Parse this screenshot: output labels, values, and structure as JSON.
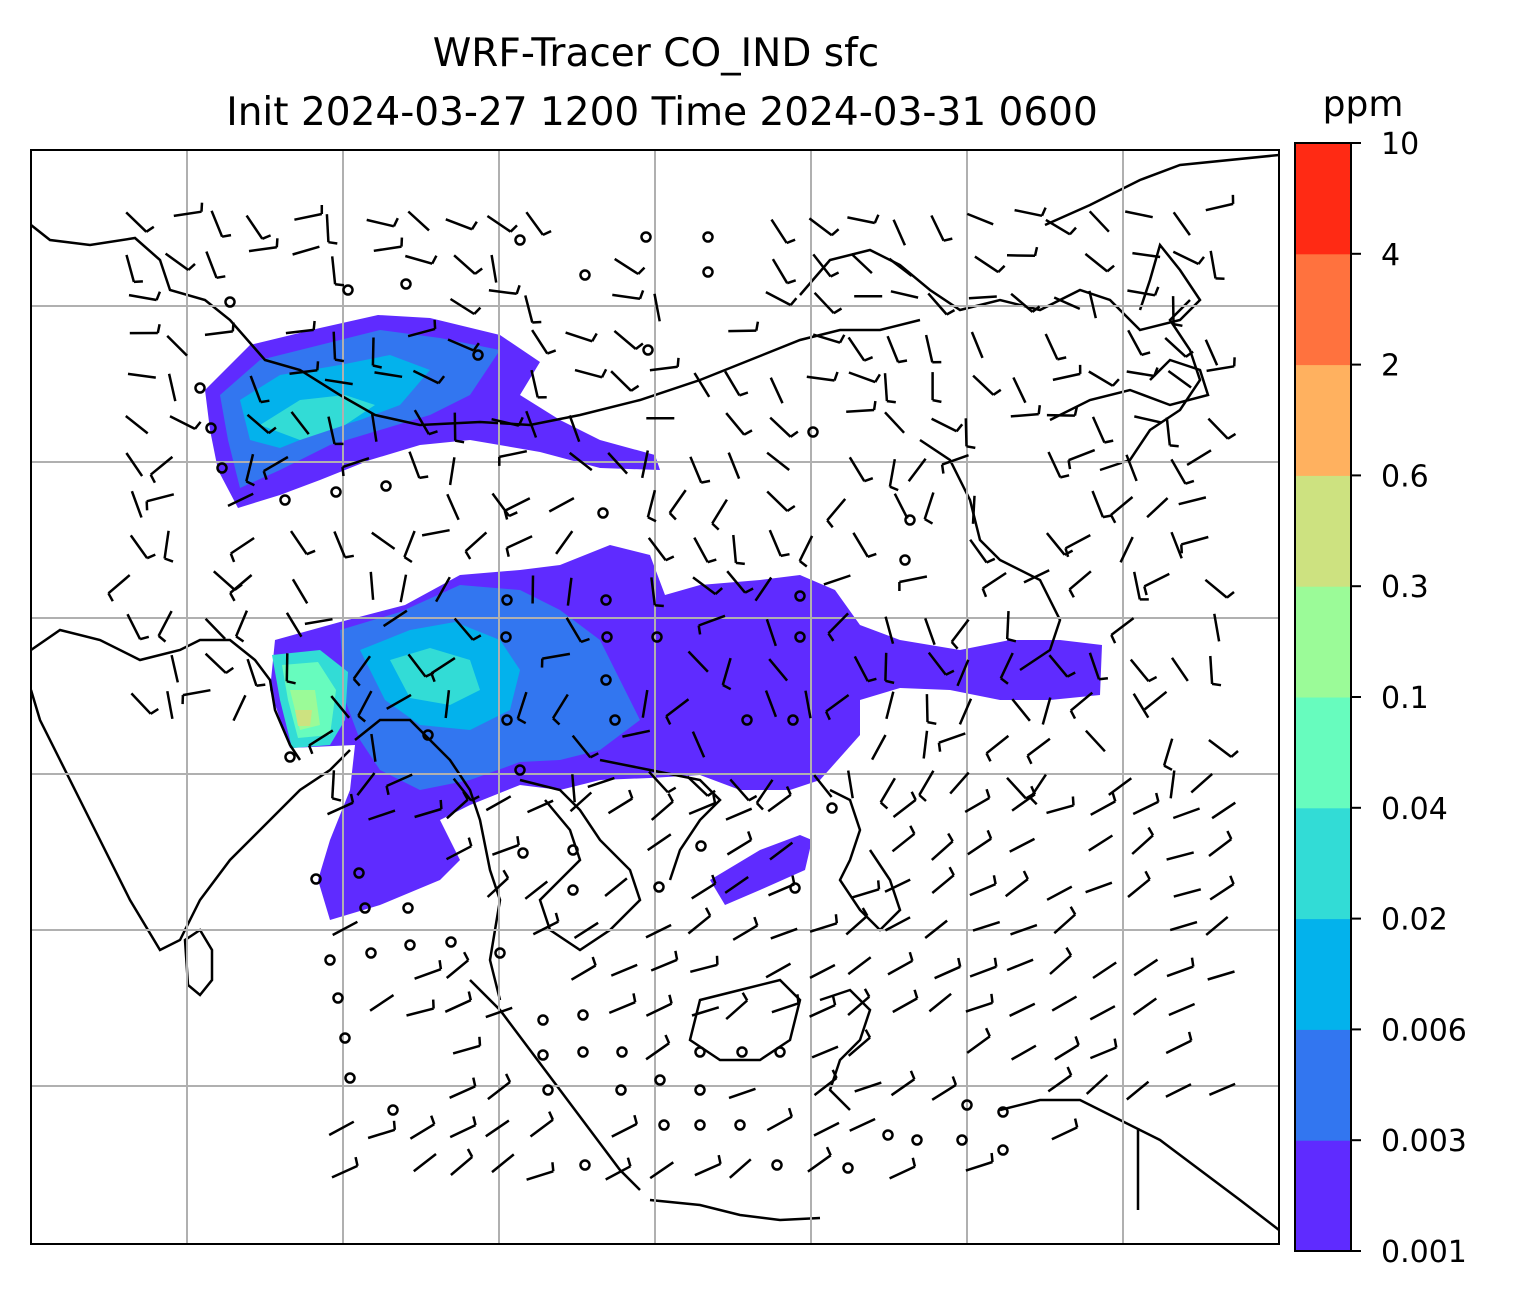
{
  "figure": {
    "title_line1": "WRF-Tracer CO_IND sfc",
    "title_line2": "Init 2024-03-27 1200 Time 2024-03-31 0600"
  },
  "colorbar": {
    "unit": "ppm",
    "ticks": [
      "0.001",
      "0.003",
      "0.006",
      "0.02",
      "0.04",
      "0.1",
      "0.3",
      "0.6",
      "2",
      "4",
      "10"
    ],
    "colors": [
      "#5f2bff",
      "#3276f0",
      "#03b2ec",
      "#32dcd6",
      "#67fcbe",
      "#9bfb98",
      "#cde280",
      "#ffb15f",
      "#ff723e",
      "#ff2a14"
    ]
  },
  "map": {
    "coastline_color": "#000000",
    "gridline_color": "#b0b0b0",
    "barb_color": "#000000",
    "barb_symbols": [
      "calm-circle",
      "wind-barb"
    ]
  }
}
